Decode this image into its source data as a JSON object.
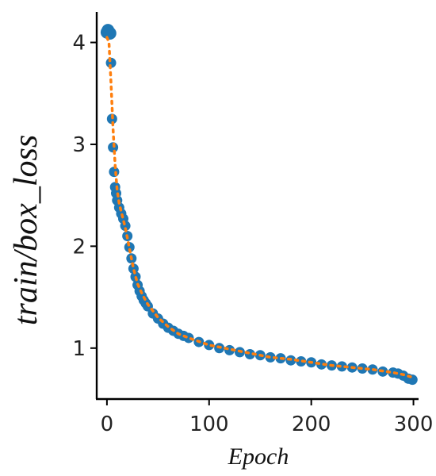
{
  "chart_data": {
    "type": "line",
    "title": "",
    "xlabel": "Epoch",
    "ylabel": "train/box_loss",
    "xlim": [
      -10,
      305
    ],
    "ylim": [
      0.5,
      4.3
    ],
    "xticks": [
      0,
      100,
      200,
      300
    ],
    "yticks": [
      1,
      2,
      3,
      4
    ],
    "xtick_labels": [
      "0",
      "100",
      "200",
      "300"
    ],
    "ytick_labels": [
      "1",
      "2",
      "3",
      "4"
    ],
    "grid": false,
    "legend": "none",
    "colors": {
      "points": "#1f77b4",
      "smooth": "#ff7f0e"
    },
    "series": [
      {
        "style": "markers",
        "x": [
          0,
          1,
          2,
          3,
          4,
          5,
          6,
          7,
          8,
          9,
          10,
          12,
          14,
          16,
          18,
          20,
          22,
          24,
          26,
          28,
          30,
          32,
          34,
          36,
          38,
          40,
          45,
          50,
          55,
          60,
          65,
          70,
          75,
          80,
          90,
          100,
          110,
          120,
          130,
          140,
          150,
          160,
          170,
          180,
          190,
          200,
          210,
          220,
          230,
          240,
          250,
          260,
          270,
          280,
          285,
          290,
          295,
          299
        ],
        "y": [
          4.1,
          4.12,
          4.1,
          4.09,
          3.8,
          3.25,
          2.97,
          2.73,
          2.58,
          2.52,
          2.45,
          2.38,
          2.32,
          2.27,
          2.2,
          2.1,
          1.99,
          1.88,
          1.78,
          1.7,
          1.62,
          1.56,
          1.51,
          1.47,
          1.44,
          1.41,
          1.34,
          1.29,
          1.24,
          1.2,
          1.17,
          1.14,
          1.12,
          1.1,
          1.06,
          1.03,
          1.0,
          0.98,
          0.96,
          0.94,
          0.93,
          0.91,
          0.9,
          0.88,
          0.87,
          0.86,
          0.84,
          0.83,
          0.82,
          0.81,
          0.8,
          0.79,
          0.77,
          0.76,
          0.75,
          0.73,
          0.7,
          0.69
        ]
      },
      {
        "style": "dotted",
        "x": [
          0,
          2,
          4,
          6,
          8,
          10,
          12,
          15,
          18,
          22,
          26,
          30,
          35,
          40,
          50,
          60,
          70,
          80,
          100,
          120,
          140,
          160,
          180,
          200,
          220,
          240,
          260,
          280,
          290,
          300
        ],
        "y": [
          4.05,
          4.0,
          3.6,
          3.15,
          2.8,
          2.55,
          2.42,
          2.3,
          2.18,
          1.98,
          1.78,
          1.63,
          1.52,
          1.43,
          1.3,
          1.21,
          1.14,
          1.1,
          1.03,
          0.99,
          0.95,
          0.91,
          0.89,
          0.86,
          0.83,
          0.81,
          0.79,
          0.76,
          0.74,
          0.71
        ]
      }
    ]
  }
}
